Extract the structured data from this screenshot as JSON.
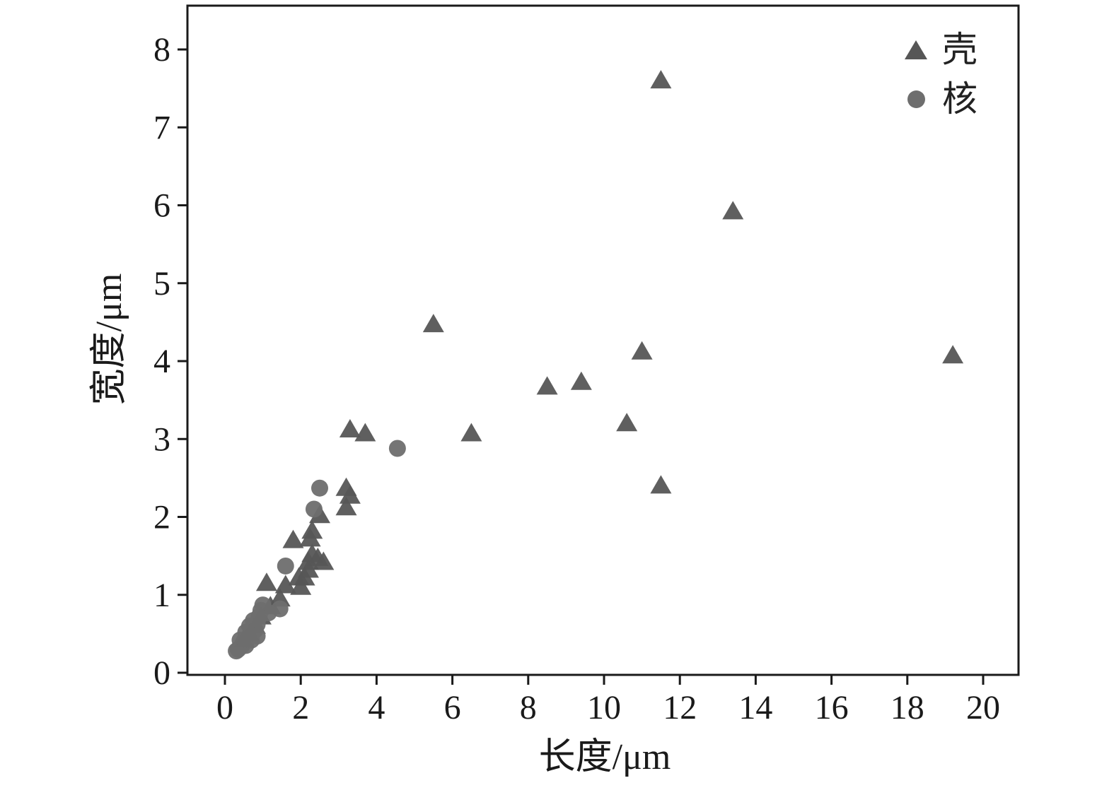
{
  "figure": {
    "type_label": "scatter-figure"
  },
  "chart_data": {
    "type": "scatter",
    "title": "",
    "xlabel": "长度/μm",
    "ylabel": "宽度/μm",
    "xlim": [
      0,
      20
    ],
    "ylim": [
      0,
      8
    ],
    "xticks": [
      0,
      2,
      4,
      6,
      8,
      10,
      12,
      14,
      16,
      18,
      20
    ],
    "yticks": [
      0,
      1,
      2,
      3,
      4,
      5,
      6,
      7,
      8
    ],
    "grid": false,
    "legend_position": "top-right",
    "axis_color": "#1a1a1a",
    "series": [
      {
        "name": "壳",
        "marker": "triangle",
        "color": "#565656",
        "points": [
          [
            11.5,
            7.6
          ],
          [
            13.4,
            5.92
          ],
          [
            5.5,
            4.47
          ],
          [
            11.0,
            4.12
          ],
          [
            19.2,
            4.07
          ],
          [
            9.4,
            3.73
          ],
          [
            8.5,
            3.67
          ],
          [
            10.6,
            3.2
          ],
          [
            3.3,
            3.12
          ],
          [
            3.7,
            3.07
          ],
          [
            6.5,
            3.07
          ],
          [
            11.5,
            2.4
          ],
          [
            3.2,
            2.37
          ],
          [
            3.3,
            2.27
          ],
          [
            3.2,
            2.12
          ],
          [
            2.5,
            2.02
          ],
          [
            2.3,
            1.82
          ],
          [
            2.25,
            1.72
          ],
          [
            1.8,
            1.7
          ],
          [
            2.3,
            1.52
          ],
          [
            2.45,
            1.47
          ],
          [
            2.6,
            1.42
          ],
          [
            2.2,
            1.42
          ],
          [
            2.2,
            1.32
          ],
          [
            2.1,
            1.22
          ],
          [
            1.95,
            1.22
          ],
          [
            1.6,
            1.12
          ],
          [
            1.1,
            1.15
          ],
          [
            2.0,
            1.1
          ],
          [
            1.45,
            0.95
          ],
          [
            1.2,
            0.85
          ],
          [
            0.95,
            0.72
          ],
          [
            0.8,
            0.6
          ],
          [
            0.65,
            0.5
          ],
          [
            0.5,
            0.42
          ]
        ]
      },
      {
        "name": "核",
        "marker": "circle",
        "color": "#6e6e6e",
        "points": [
          [
            4.55,
            2.88
          ],
          [
            2.5,
            2.37
          ],
          [
            2.35,
            2.1
          ],
          [
            1.6,
            1.37
          ],
          [
            1.45,
            0.82
          ],
          [
            1.15,
            0.77
          ],
          [
            1.0,
            0.87
          ],
          [
            0.95,
            0.8
          ],
          [
            0.9,
            0.72
          ],
          [
            0.85,
            0.62
          ],
          [
            0.8,
            0.55
          ],
          [
            0.75,
            0.67
          ],
          [
            0.7,
            0.5
          ],
          [
            0.65,
            0.6
          ],
          [
            0.6,
            0.45
          ],
          [
            0.55,
            0.52
          ],
          [
            0.5,
            0.4
          ],
          [
            0.45,
            0.35
          ],
          [
            0.4,
            0.42
          ],
          [
            0.35,
            0.3
          ],
          [
            0.3,
            0.28
          ],
          [
            0.55,
            0.35
          ],
          [
            0.7,
            0.42
          ],
          [
            0.85,
            0.47
          ]
        ]
      }
    ]
  }
}
